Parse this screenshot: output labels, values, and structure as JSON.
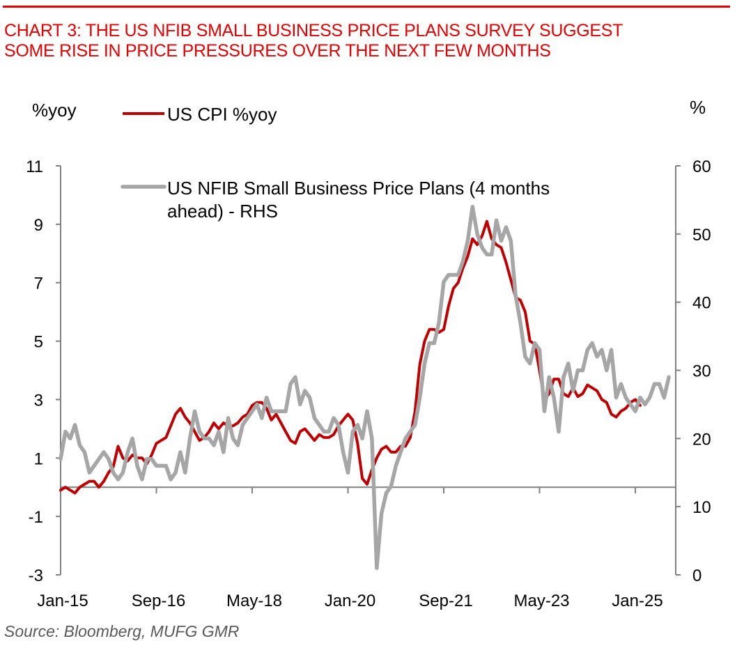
{
  "title_lines": [
    "CHART 3: THE US NFIB SMALL BUSINESS PRICE PLANS SURVEY SUGGEST",
    "SOME RISE IN PRICE PRESSURES OVER THE NEXT FEW MONTHS"
  ],
  "source": "Source: Bloomberg, MUFG GMR",
  "colors": {
    "title": "#e60000",
    "cpi": "#c00000",
    "nfib": "#a6a6a6",
    "axis": "#808080"
  },
  "chart_data": {
    "type": "line",
    "title": "CHART 3: THE US NFIB SMALL BUSINESS PRICE PLANS SURVEY SUGGEST SOME RISE IN PRICE PRESSURES OVER THE NEXT FEW MONTHS",
    "left_axis_label": "%yoy",
    "right_axis_label": "%",
    "x_start": "Jan-15",
    "x_frequency": "monthly",
    "x_tick_labels": [
      "Jan-15",
      "Sep-16",
      "May-18",
      "Jan-20",
      "Sep-21",
      "May-23",
      "Jan-25"
    ],
    "x_tick_month_offsets": [
      0,
      20,
      40,
      60,
      80,
      100,
      120
    ],
    "ylim_left": [
      -3,
      11
    ],
    "yticks_left": [
      11,
      9,
      7,
      5,
      3,
      1,
      -1,
      -3
    ],
    "ylim_right": [
      0,
      60
    ],
    "yticks_right": [
      60,
      50,
      40,
      30,
      20,
      10,
      0
    ],
    "x_axis_crosses_left_at": 0,
    "grid": false,
    "legend_position": "top-left-inside",
    "series": [
      {
        "name": "US CPI %yoy",
        "axis": "left",
        "values": [
          -0.1,
          0.0,
          -0.1,
          -0.2,
          0.0,
          0.1,
          0.2,
          0.2,
          0.0,
          0.2,
          0.5,
          0.7,
          1.4,
          1.0,
          0.9,
          1.1,
          1.0,
          1.0,
          0.8,
          1.1,
          1.5,
          1.6,
          1.7,
          2.1,
          2.5,
          2.7,
          2.4,
          2.2,
          1.9,
          1.6,
          1.7,
          1.9,
          2.2,
          2.0,
          2.2,
          2.1,
          2.1,
          2.2,
          2.4,
          2.5,
          2.8,
          2.9,
          2.9,
          2.7,
          2.3,
          2.5,
          2.2,
          1.9,
          1.6,
          1.5,
          1.9,
          2.0,
          1.8,
          1.6,
          1.8,
          1.7,
          1.7,
          1.8,
          2.1,
          2.3,
          2.5,
          2.3,
          1.5,
          0.3,
          0.1,
          0.6,
          1.0,
          1.3,
          1.4,
          1.2,
          1.2,
          1.4,
          1.4,
          1.7,
          2.6,
          4.2,
          5.0,
          5.4,
          5.4,
          5.3,
          5.4,
          6.2,
          6.8,
          7.0,
          7.5,
          7.9,
          8.5,
          8.3,
          8.6,
          9.1,
          8.5,
          8.3,
          8.2,
          7.7,
          7.1,
          6.5,
          6.4,
          6.0,
          5.0,
          4.9,
          4.0,
          3.0,
          3.2,
          3.7,
          3.7,
          3.2,
          3.1,
          3.4,
          3.1,
          3.2,
          3.5,
          3.4,
          3.3,
          3.0,
          2.9,
          2.5,
          2.4,
          2.6,
          2.7,
          2.9,
          3.0,
          2.8
        ]
      },
      {
        "name": "US NFIB Small Business Price Plans (4 months ahead) - RHS",
        "axis": "right",
        "values": [
          17,
          21,
          20,
          22,
          19,
          18,
          15,
          16,
          17,
          18,
          17,
          15,
          14,
          15,
          18,
          20,
          16,
          14,
          17,
          17,
          16,
          16,
          16,
          14,
          15,
          18,
          15,
          20,
          24,
          21,
          20,
          20,
          19,
          21,
          18,
          23,
          20,
          19,
          22,
          23,
          24,
          25,
          23,
          26,
          24,
          24,
          24,
          24,
          28,
          29,
          25,
          27,
          26,
          23,
          22,
          21,
          21,
          23,
          22,
          18,
          15,
          21,
          22,
          20,
          24,
          20,
          1,
          9,
          12,
          13,
          16,
          18,
          20,
          21,
          22,
          26,
          31,
          34,
          34,
          37,
          43,
          44,
          44,
          44,
          46,
          49,
          54,
          50,
          48,
          47,
          47,
          52,
          49,
          51,
          49,
          41,
          37,
          32,
          31,
          34,
          33,
          24,
          29,
          26,
          21,
          29,
          31,
          27,
          30,
          30,
          33,
          34,
          32,
          33,
          30,
          33,
          26,
          28,
          26,
          25,
          24,
          26,
          25,
          26,
          28,
          28,
          26,
          29
        ]
      }
    ]
  }
}
